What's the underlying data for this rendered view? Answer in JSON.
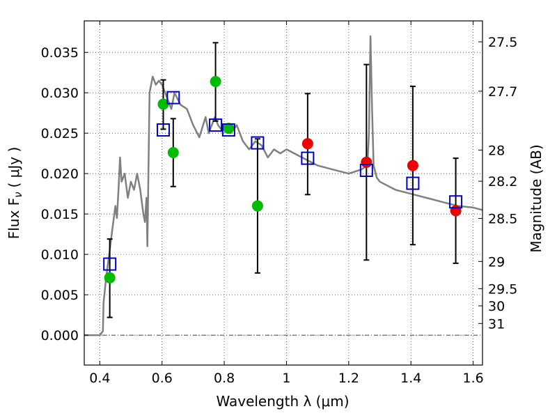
{
  "chart_data": {
    "type": "scatter",
    "xlabel": "Wavelength  λ (μm)",
    "ylabel": "Flux  F",
    "ylabel_subscript": "ν",
    "ylabel_unit": "( μJy )",
    "y2label": "Magnitude (AB)",
    "xlim": [
      0.35,
      1.63
    ],
    "ylim": [
      -0.0037,
      0.0389
    ],
    "x_ticks": [
      "0.4",
      "0.6",
      "0.8",
      "1",
      "1.2",
      "1.4",
      "1.6"
    ],
    "y_ticks": [
      "0.000",
      "0.005",
      "0.010",
      "0.015",
      "0.020",
      "0.025",
      "0.030",
      "0.035"
    ],
    "y2_ticks": [
      "27.5",
      "27.7",
      "28",
      "28.2",
      "28.5",
      "29",
      "29.5",
      "30",
      "31"
    ],
    "grid": true,
    "zero_line": true,
    "colors": {
      "model": "#808080",
      "green": "#00bb00",
      "red": "#ee0000",
      "box": "#0000cc",
      "errorbar": "#000000"
    },
    "model_spectrum": {
      "x": [
        0.35,
        0.4,
        0.41,
        0.412,
        0.42,
        0.43,
        0.44,
        0.45,
        0.455,
        0.46,
        0.465,
        0.47,
        0.48,
        0.49,
        0.5,
        0.51,
        0.52,
        0.53,
        0.54,
        0.545,
        0.55,
        0.553,
        0.56,
        0.57,
        0.58,
        0.59,
        0.6,
        0.61,
        0.62,
        0.63,
        0.64,
        0.66,
        0.68,
        0.7,
        0.72,
        0.74,
        0.75,
        0.76,
        0.77,
        0.78,
        0.79,
        0.8,
        0.82,
        0.84,
        0.86,
        0.88,
        0.9,
        0.92,
        0.94,
        0.96,
        0.98,
        1.0,
        1.05,
        1.1,
        1.15,
        1.2,
        1.24,
        1.26,
        1.265,
        1.27,
        1.275,
        1.28,
        1.29,
        1.3,
        1.35,
        1.4,
        1.45,
        1.5,
        1.55,
        1.6,
        1.63
      ],
      "y": [
        0.0,
        0.0,
        0.0005,
        0.004,
        0.007,
        0.01,
        0.013,
        0.016,
        0.0145,
        0.018,
        0.022,
        0.019,
        0.02,
        0.017,
        0.019,
        0.018,
        0.02,
        0.018,
        0.015,
        0.014,
        0.017,
        0.011,
        0.03,
        0.032,
        0.031,
        0.0315,
        0.031,
        0.03,
        0.029,
        0.028,
        0.03,
        0.0285,
        0.028,
        0.026,
        0.0245,
        0.027,
        0.025,
        0.026,
        0.027,
        0.026,
        0.0255,
        0.026,
        0.025,
        0.026,
        0.024,
        0.023,
        0.024,
        0.0235,
        0.022,
        0.023,
        0.0225,
        0.023,
        0.022,
        0.021,
        0.0205,
        0.02,
        0.0205,
        0.021,
        0.025,
        0.037,
        0.028,
        0.021,
        0.0195,
        0.019,
        0.018,
        0.0175,
        0.017,
        0.0165,
        0.016,
        0.0158,
        0.0155
      ]
    },
    "green_points": [
      {
        "x": 0.432,
        "y": 0.0071,
        "err_lo": 0.0022,
        "err_hi": 0.0119
      },
      {
        "x": 0.604,
        "y": 0.0286,
        "err_lo": 0.0255,
        "err_hi": 0.0316
      },
      {
        "x": 0.636,
        "y": 0.0226,
        "err_lo": 0.0184,
        "err_hi": 0.0268
      },
      {
        "x": 0.772,
        "y": 0.0314,
        "err_lo": 0.0265,
        "err_hi": 0.0362
      },
      {
        "x": 0.814,
        "y": 0.0256
      },
      {
        "x": 0.907,
        "y": 0.016,
        "err_lo": 0.0077,
        "err_hi": 0.0243
      }
    ],
    "red_points": [
      {
        "x": 1.068,
        "y": 0.0237,
        "err_lo": 0.0174,
        "err_hi": 0.0299
      },
      {
        "x": 1.257,
        "y": 0.0214,
        "err_lo": 0.0093,
        "err_hi": 0.0335
      },
      {
        "x": 1.406,
        "y": 0.021,
        "err_lo": 0.0112,
        "err_hi": 0.0308
      },
      {
        "x": 1.544,
        "y": 0.0154,
        "err_lo": 0.0089,
        "err_hi": 0.0219
      }
    ],
    "model_boxes": [
      {
        "x": 0.432,
        "y": 0.0088
      },
      {
        "x": 0.604,
        "y": 0.0254
      },
      {
        "x": 0.636,
        "y": 0.0294
      },
      {
        "x": 0.772,
        "y": 0.026
      },
      {
        "x": 0.814,
        "y": 0.0254
      },
      {
        "x": 0.907,
        "y": 0.0238
      },
      {
        "x": 1.068,
        "y": 0.0219
      },
      {
        "x": 1.257,
        "y": 0.0204
      },
      {
        "x": 1.406,
        "y": 0.0188
      },
      {
        "x": 1.544,
        "y": 0.0165
      }
    ]
  }
}
